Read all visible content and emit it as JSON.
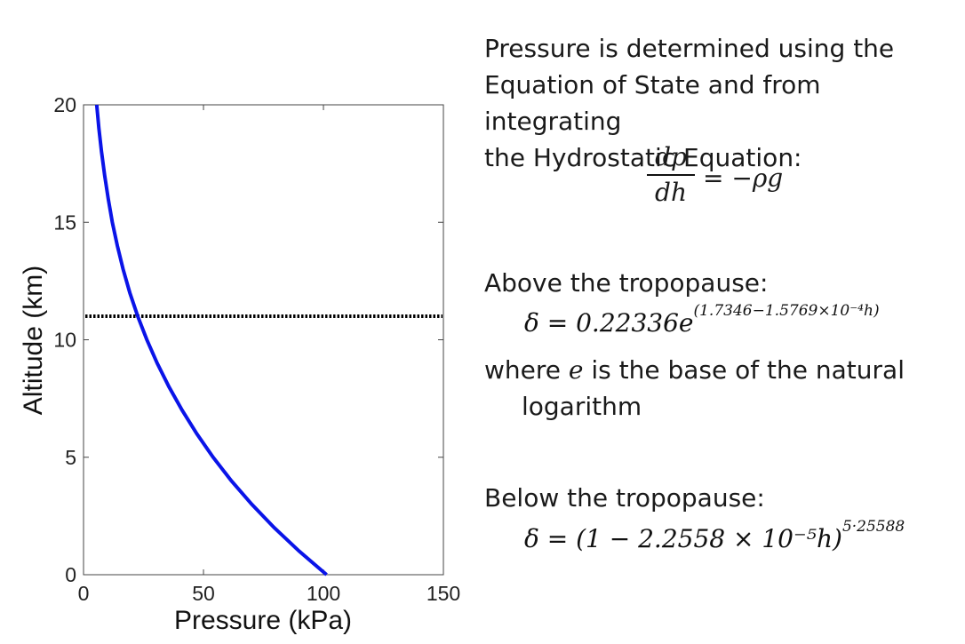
{
  "chart_data": {
    "type": "line",
    "xlabel": "Pressure (kPa)",
    "ylabel": "Altitude (km)",
    "xlim": [
      0,
      150
    ],
    "ylim": [
      0,
      20
    ],
    "xticks": [
      "0",
      "50",
      "100",
      "150"
    ],
    "yticks": [
      "0",
      "5",
      "10",
      "15",
      "20"
    ],
    "grid": false,
    "series": [
      {
        "color": "#0a14e8",
        "x": [
          101.325,
          89.9,
          79.5,
          70.1,
          61.6,
          54.0,
          47.2,
          41.1,
          35.6,
          30.7,
          26.4,
          22.6,
          19.3,
          16.5,
          14.1,
          12.0,
          10.3,
          8.8,
          7.5,
          6.4,
          5.5
        ],
        "y": [
          0,
          1,
          2,
          3,
          4,
          5,
          6,
          7,
          8,
          9,
          10,
          11,
          12,
          13,
          14,
          15,
          16,
          17,
          18,
          19,
          20
        ]
      }
    ],
    "reference_line": {
      "y": 11,
      "style": "dotted",
      "color": "#000000"
    }
  },
  "text": {
    "intro": "Pressure is determined using the\nEquation of State and from integrating\nthe Hydrostatic Equation:",
    "hydro_num": "dp",
    "hydro_den": "dh",
    "hydro_rhs": "= −ρg",
    "above_label": "Above the tropopause:",
    "above_eq_base": "δ = 0.22336e",
    "above_eq_exp": "(1.7346−1.5769×10⁻⁴h)",
    "where_prefix": "where ",
    "where_e": "e",
    "where_rest": " is the base of the natural",
    "where_line2": "logarithm",
    "below_label": "Below the tropopause:",
    "below_eq_base": "δ = (1 − 2.2558 × 10⁻⁵h)",
    "below_eq_exp": "5·25588"
  }
}
